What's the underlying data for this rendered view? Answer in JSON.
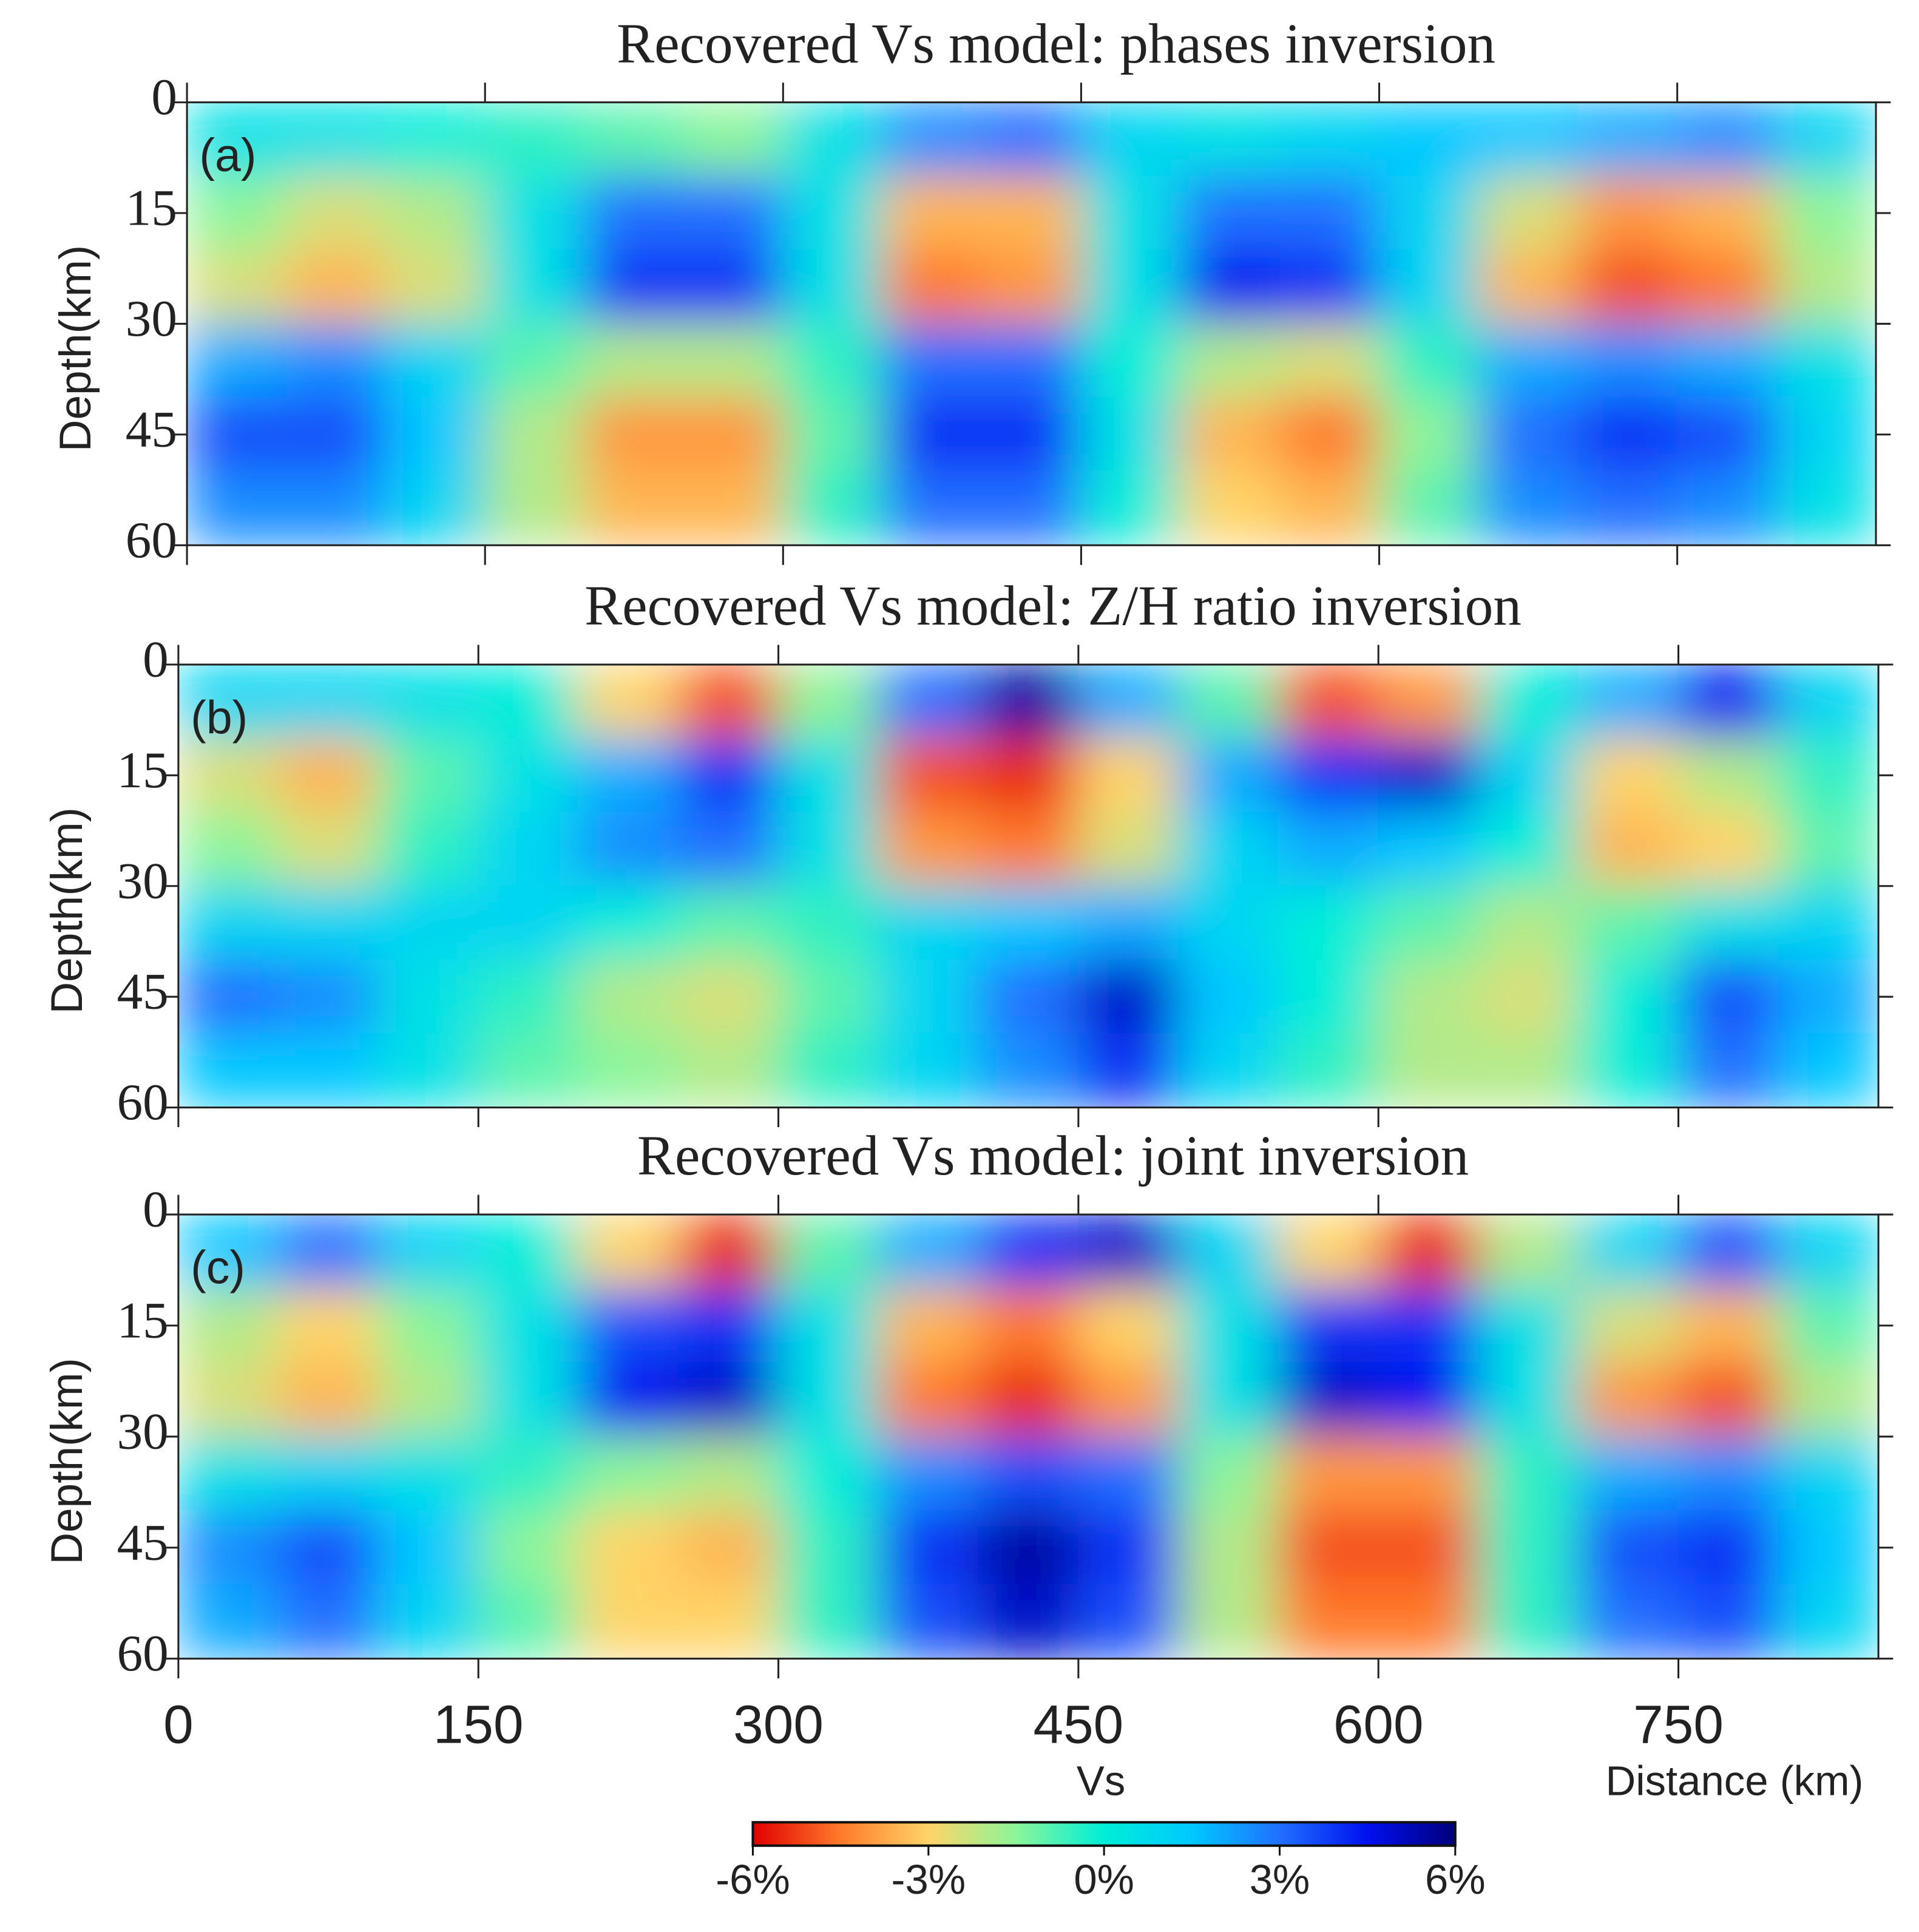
{
  "chart_data": [
    {
      "type": "heatmap",
      "title": "Recovered Vs model: phases inversion",
      "panel_label": "(a)",
      "y_label": "Depth(km)",
      "x": [
        25,
        75,
        125,
        175,
        225,
        275,
        325,
        375,
        425,
        475,
        525,
        575,
        625,
        675,
        725,
        775,
        825
      ],
      "y": [
        5,
        15,
        25,
        35,
        45,
        55
      ],
      "values": [
        [
          0.5,
          0.5,
          0,
          -0.5,
          -1,
          -1.5,
          0.5,
          2.5,
          3,
          1,
          0.5,
          1,
          1.5,
          1.5,
          2,
          2.5,
          1
        ],
        [
          -1.5,
          -2.5,
          -2,
          0.5,
          3,
          3,
          0.5,
          -3.5,
          -3.5,
          0.5,
          3,
          3,
          1,
          -2.5,
          -4,
          -3.5,
          -1.5
        ],
        [
          -2.5,
          -3.5,
          -2.5,
          0.5,
          4,
          4,
          0.5,
          -4.5,
          -4,
          0.5,
          4.5,
          4,
          1,
          -3.5,
          -5,
          -4.5,
          -2
        ],
        [
          2,
          2.5,
          1,
          -1,
          -2,
          -2,
          -0.5,
          3,
          3,
          0,
          -2,
          -2.5,
          -0.5,
          2,
          2.5,
          2,
          0.5
        ],
        [
          3.5,
          3.5,
          1.5,
          -2,
          -4,
          -4,
          -1,
          4,
          4,
          0.5,
          -3.5,
          -4.5,
          -1.5,
          3,
          4,
          3.5,
          1
        ],
        [
          2.5,
          2.5,
          1,
          -2,
          -3.5,
          -3.5,
          -0.5,
          3,
          3,
          0,
          -3,
          -3.5,
          -1,
          2.5,
          3,
          2.5,
          0.5
        ]
      ],
      "xlim": [
        0,
        850
      ],
      "ylim": [
        0,
        60
      ],
      "y_inverted": true,
      "xticks": [
        0,
        150,
        300,
        450,
        600,
        750
      ],
      "show_xtick_labels": false,
      "yticks": [
        0,
        15,
        30,
        45,
        60
      ]
    },
    {
      "type": "heatmap",
      "title": "Recovered Vs model: Z/H ratio inversion",
      "panel_label": "(b)",
      "y_label": "Depth(km)",
      "x": [
        25,
        75,
        125,
        175,
        225,
        275,
        325,
        375,
        425,
        475,
        525,
        575,
        625,
        675,
        725,
        775,
        825
      ],
      "y": [
        5,
        15,
        25,
        35,
        45,
        55
      ],
      "values": [
        [
          1,
          1,
          0.5,
          0,
          -3,
          -5,
          -1.5,
          3,
          5.5,
          2,
          -1,
          -5,
          -4,
          0,
          2,
          4.5,
          1
        ],
        [
          -2.5,
          -3.5,
          -1,
          0.5,
          2,
          4,
          0.5,
          -5,
          -5.5,
          -3,
          2,
          4,
          5,
          1,
          -3,
          -2,
          -0.5
        ],
        [
          -1.5,
          -2.5,
          -0.5,
          1,
          2.5,
          3,
          0.5,
          -4,
          -4.5,
          -2.5,
          1,
          2,
          1.5,
          0,
          -3.5,
          -3,
          -1
        ],
        [
          1,
          1,
          1,
          1,
          0,
          -1,
          -0.5,
          1,
          1.5,
          2,
          1,
          0,
          -1,
          -2,
          -1,
          0.5,
          1
        ],
        [
          3,
          2.5,
          0.5,
          -0.5,
          -2,
          -2.5,
          -1,
          1,
          3,
          5,
          1.5,
          0,
          -2,
          -2.5,
          0,
          3.5,
          2
        ],
        [
          1.5,
          1.5,
          0.5,
          -1,
          -1.5,
          -2,
          -0.5,
          1,
          2.5,
          4,
          1,
          -0.5,
          -2,
          -2,
          0,
          3,
          1.5
        ]
      ],
      "xlim": [
        0,
        850
      ],
      "ylim": [
        0,
        60
      ],
      "y_inverted": true,
      "xticks": [
        0,
        150,
        300,
        450,
        600,
        750
      ],
      "show_xtick_labels": false,
      "yticks": [
        0,
        15,
        30,
        45,
        60
      ]
    },
    {
      "type": "heatmap",
      "title": "Recovered Vs model: joint inversion",
      "panel_label": "(c)",
      "y_label": "Depth(km)",
      "x_label": "Distance (km)",
      "x": [
        25,
        75,
        125,
        175,
        225,
        275,
        325,
        375,
        425,
        475,
        525,
        575,
        625,
        675,
        725,
        775,
        825
      ],
      "y": [
        5,
        15,
        25,
        35,
        45,
        55
      ],
      "values": [
        [
          1.5,
          3,
          1,
          0,
          -3,
          -5.5,
          -1,
          2,
          4,
          5,
          1,
          -3,
          -5.5,
          -2,
          1,
          3.5,
          1
        ],
        [
          -2,
          -3,
          -1.5,
          0.5,
          3.5,
          4,
          0.5,
          -3.5,
          -4.5,
          -3,
          0.5,
          4,
          4,
          0.5,
          -2.5,
          -3.5,
          -1
        ],
        [
          -2.5,
          -3.5,
          -2,
          0.5,
          4.5,
          5,
          0.5,
          -4.5,
          -5.5,
          -4,
          0.5,
          5,
          4.5,
          0.5,
          -4,
          -5,
          -2
        ],
        [
          0.5,
          1,
          0.5,
          -0.5,
          -1.5,
          -2,
          0,
          2.5,
          3.5,
          3,
          -1.5,
          -4,
          -4,
          -0.5,
          2,
          2.5,
          1
        ],
        [
          2.5,
          3.5,
          1.5,
          -1.5,
          -3,
          -3.5,
          -0.5,
          4,
          5.5,
          4,
          -2,
          -5,
          -5,
          -0.5,
          3.5,
          4,
          1.5
        ],
        [
          2,
          3,
          1,
          -1,
          -3,
          -3,
          -0.5,
          3.5,
          5,
          3.5,
          -2,
          -4.5,
          -4.5,
          -0.5,
          3,
          3.5,
          1
        ]
      ],
      "xlim": [
        0,
        850
      ],
      "ylim": [
        0,
        60
      ],
      "y_inverted": true,
      "xticks": [
        0,
        150,
        300,
        450,
        600,
        750
      ],
      "show_xtick_labels": true,
      "yticks": [
        0,
        15,
        30,
        45,
        60
      ]
    }
  ],
  "colorbar": {
    "title": "Vs",
    "lim": [
      -6,
      6
    ],
    "colors": [
      "#e00000",
      "#ff7a2a",
      "#ffd468",
      "#8cf59a",
      "#00eed8",
      "#00c8ff",
      "#2070ff",
      "#0010f0",
      "#00007a"
    ],
    "ticks": [
      {
        "value": -6,
        "label": "-6%"
      },
      {
        "value": -3,
        "label": "-3%"
      },
      {
        "value": 0,
        "label": "0%"
      },
      {
        "value": 3,
        "label": "3%"
      },
      {
        "value": 6,
        "label": "6%"
      }
    ]
  }
}
